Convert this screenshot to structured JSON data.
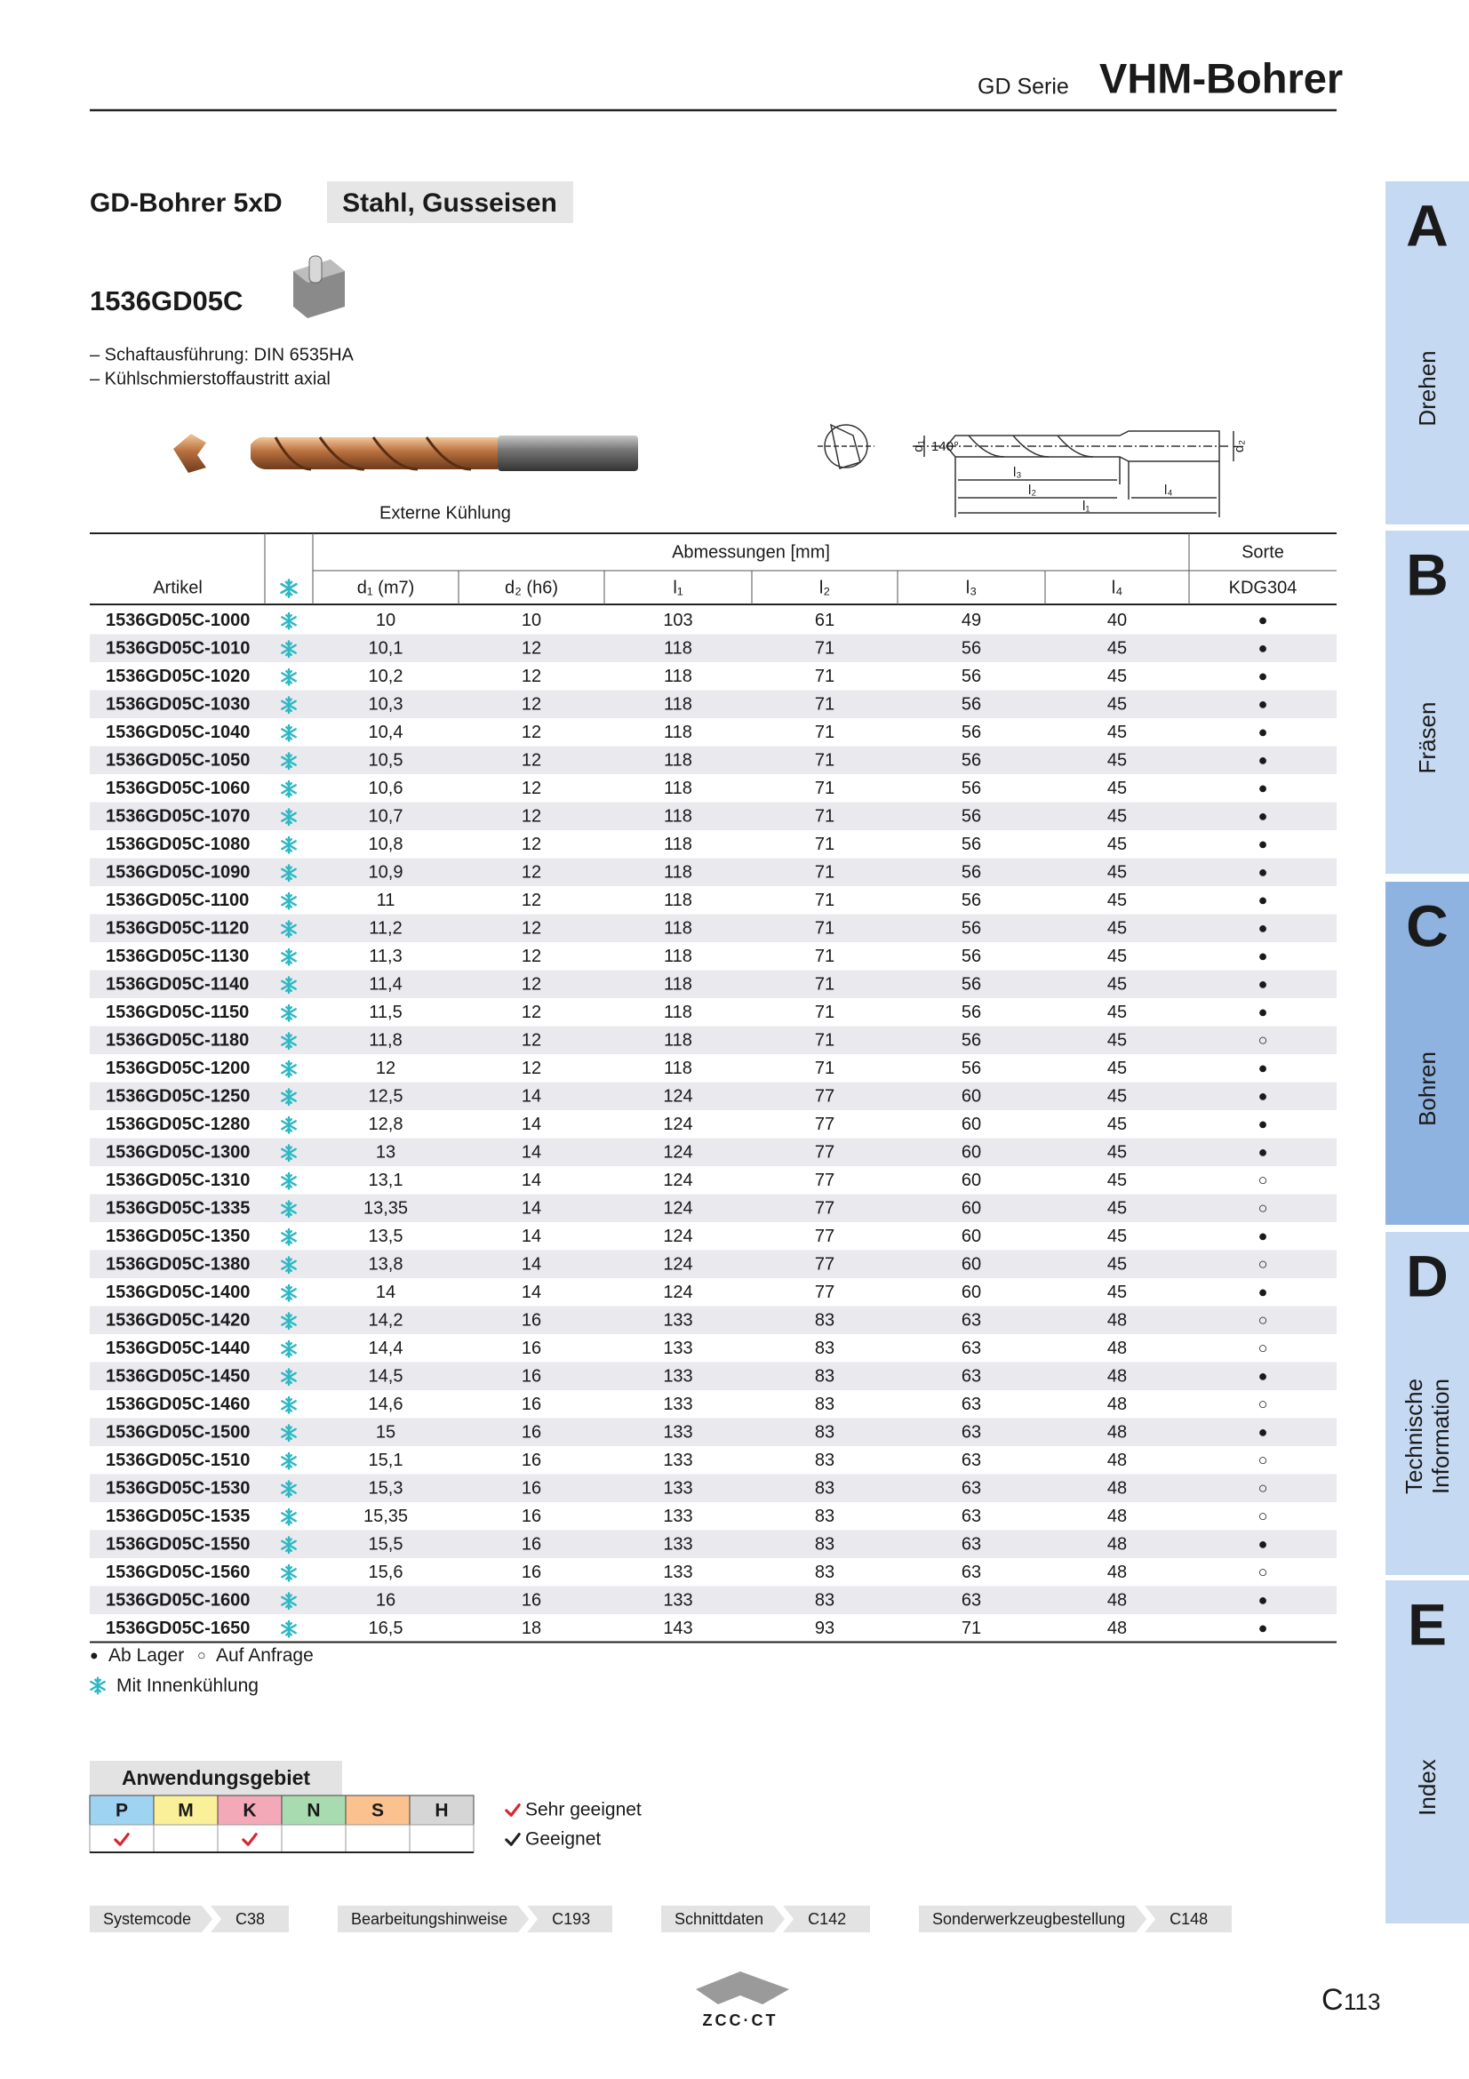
{
  "header": {
    "series": "GD Serie",
    "title": "VHM-Bohrer"
  },
  "product": {
    "title": "GD-Bohrer 5xD",
    "material": "Stahl, Gusseisen",
    "code": "1536GD05C",
    "features": [
      "– Schaftausführung: DIN 6535HA",
      "– Kühlschmierstoffaustritt axial"
    ],
    "image_caption": "Externe Kühlung"
  },
  "drawing": {
    "angle": "140°",
    "d1": "d₁",
    "d2": "d₂",
    "l1": "l₁",
    "l2": "l₂",
    "l3": "l₃",
    "l4": "l₄"
  },
  "table": {
    "group_dimensions": "Abmessungen [mm]",
    "group_grade": "Sorte",
    "columns": [
      "Artikel",
      "d₁ (m7)",
      "d₂ (h6)",
      "l₁",
      "l₂",
      "l₃",
      "l₄"
    ],
    "grade": "KDG304",
    "rows": [
      [
        "1536GD05C-1000",
        "10",
        "10",
        "103",
        "61",
        "49",
        "40",
        "●"
      ],
      [
        "1536GD05C-1010",
        "10,1",
        "12",
        "118",
        "71",
        "56",
        "45",
        "●"
      ],
      [
        "1536GD05C-1020",
        "10,2",
        "12",
        "118",
        "71",
        "56",
        "45",
        "●"
      ],
      [
        "1536GD05C-1030",
        "10,3",
        "12",
        "118",
        "71",
        "56",
        "45",
        "●"
      ],
      [
        "1536GD05C-1040",
        "10,4",
        "12",
        "118",
        "71",
        "56",
        "45",
        "●"
      ],
      [
        "1536GD05C-1050",
        "10,5",
        "12",
        "118",
        "71",
        "56",
        "45",
        "●"
      ],
      [
        "1536GD05C-1060",
        "10,6",
        "12",
        "118",
        "71",
        "56",
        "45",
        "●"
      ],
      [
        "1536GD05C-1070",
        "10,7",
        "12",
        "118",
        "71",
        "56",
        "45",
        "●"
      ],
      [
        "1536GD05C-1080",
        "10,8",
        "12",
        "118",
        "71",
        "56",
        "45",
        "●"
      ],
      [
        "1536GD05C-1090",
        "10,9",
        "12",
        "118",
        "71",
        "56",
        "45",
        "●"
      ],
      [
        "1536GD05C-1100",
        "11",
        "12",
        "118",
        "71",
        "56",
        "45",
        "●"
      ],
      [
        "1536GD05C-1120",
        "11,2",
        "12",
        "118",
        "71",
        "56",
        "45",
        "●"
      ],
      [
        "1536GD05C-1130",
        "11,3",
        "12",
        "118",
        "71",
        "56",
        "45",
        "●"
      ],
      [
        "1536GD05C-1140",
        "11,4",
        "12",
        "118",
        "71",
        "56",
        "45",
        "●"
      ],
      [
        "1536GD05C-1150",
        "11,5",
        "12",
        "118",
        "71",
        "56",
        "45",
        "●"
      ],
      [
        "1536GD05C-1180",
        "11,8",
        "12",
        "118",
        "71",
        "56",
        "45",
        "○"
      ],
      [
        "1536GD05C-1200",
        "12",
        "12",
        "118",
        "71",
        "56",
        "45",
        "●"
      ],
      [
        "1536GD05C-1250",
        "12,5",
        "14",
        "124",
        "77",
        "60",
        "45",
        "●"
      ],
      [
        "1536GD05C-1280",
        "12,8",
        "14",
        "124",
        "77",
        "60",
        "45",
        "●"
      ],
      [
        "1536GD05C-1300",
        "13",
        "14",
        "124",
        "77",
        "60",
        "45",
        "●"
      ],
      [
        "1536GD05C-1310",
        "13,1",
        "14",
        "124",
        "77",
        "60",
        "45",
        "○"
      ],
      [
        "1536GD05C-1335",
        "13,35",
        "14",
        "124",
        "77",
        "60",
        "45",
        "○"
      ],
      [
        "1536GD05C-1350",
        "13,5",
        "14",
        "124",
        "77",
        "60",
        "45",
        "●"
      ],
      [
        "1536GD05C-1380",
        "13,8",
        "14",
        "124",
        "77",
        "60",
        "45",
        "○"
      ],
      [
        "1536GD05C-1400",
        "14",
        "14",
        "124",
        "77",
        "60",
        "45",
        "●"
      ],
      [
        "1536GD05C-1420",
        "14,2",
        "16",
        "133",
        "83",
        "63",
        "48",
        "○"
      ],
      [
        "1536GD05C-1440",
        "14,4",
        "16",
        "133",
        "83",
        "63",
        "48",
        "○"
      ],
      [
        "1536GD05C-1450",
        "14,5",
        "16",
        "133",
        "83",
        "63",
        "48",
        "●"
      ],
      [
        "1536GD05C-1460",
        "14,6",
        "16",
        "133",
        "83",
        "63",
        "48",
        "○"
      ],
      [
        "1536GD05C-1500",
        "15",
        "16",
        "133",
        "83",
        "63",
        "48",
        "●"
      ],
      [
        "1536GD05C-1510",
        "15,1",
        "16",
        "133",
        "83",
        "63",
        "48",
        "○"
      ],
      [
        "1536GD05C-1530",
        "15,3",
        "16",
        "133",
        "83",
        "63",
        "48",
        "○"
      ],
      [
        "1536GD05C-1535",
        "15,35",
        "16",
        "133",
        "83",
        "63",
        "48",
        "○"
      ],
      [
        "1536GD05C-1550",
        "15,5",
        "16",
        "133",
        "83",
        "63",
        "48",
        "●"
      ],
      [
        "1536GD05C-1560",
        "15,6",
        "16",
        "133",
        "83",
        "63",
        "48",
        "○"
      ],
      [
        "1536GD05C-1600",
        "16",
        "16",
        "133",
        "83",
        "63",
        "48",
        "●"
      ],
      [
        "1536GD05C-1650",
        "16,5",
        "18",
        "143",
        "93",
        "71",
        "48",
        "●"
      ]
    ]
  },
  "legend": {
    "stock_symbol": "●",
    "stock": "Ab Lager",
    "request_symbol": "○",
    "request": "Auf Anfrage",
    "internal_cooling": "Mit Innenkühlung"
  },
  "application": {
    "title": "Anwendungsgebiet",
    "groups": [
      "P",
      "M",
      "K",
      "N",
      "S",
      "H"
    ],
    "very_suitable": [
      "P",
      "K"
    ],
    "legend_very": "Sehr geeignet",
    "legend_suitable": "Geeignet"
  },
  "links": [
    {
      "label": "Systemcode",
      "page": "C38"
    },
    {
      "label": "Bearbeitungshinweise",
      "page": "C193"
    },
    {
      "label": "Schnittdaten",
      "page": "C142"
    },
    {
      "label": "Sonderwerkzeugbestellung",
      "page": "C148"
    }
  ],
  "logo": "ZCC·CT",
  "page": {
    "letter": "C",
    "number": "113"
  },
  "tabs": [
    {
      "letter": "A",
      "name": [
        "Drehen"
      ]
    },
    {
      "letter": "B",
      "name": [
        "Fräsen"
      ]
    },
    {
      "letter": "C",
      "name": [
        "Bohren"
      ],
      "active": true
    },
    {
      "letter": "D",
      "name": [
        "Technische",
        "Information"
      ]
    },
    {
      "letter": "E",
      "name": [
        "Index"
      ]
    }
  ]
}
